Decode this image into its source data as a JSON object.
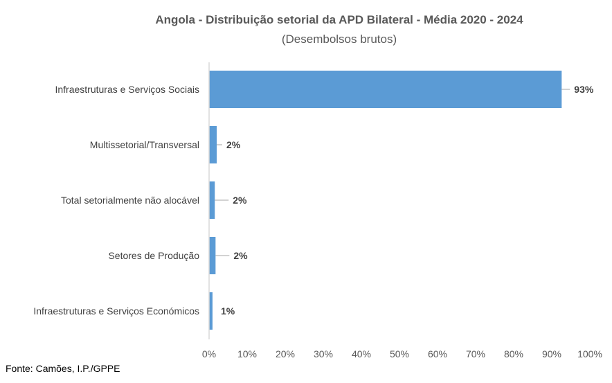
{
  "chart_data": {
    "type": "bar",
    "orientation": "horizontal",
    "title": "Angola - Distribuição setorial da APD Bilateral - Média 2020  - 2024",
    "subtitle": "(Desembolsos brutos)",
    "categories": [
      "Infraestruturas e Serviços Sociais",
      "Multissetorial/Transversal",
      "Total setorialmente não alocável",
      "Setores de Produção",
      "Infraestruturas e Serviços Económicos"
    ],
    "values": [
      92.6,
      2.0,
      1.5,
      1.7,
      0.9
    ],
    "data_labels": [
      "93%",
      "2%",
      "2%",
      "2%",
      "1%"
    ],
    "xlim": [
      0,
      100
    ],
    "x_ticks": [
      "0%",
      "10%",
      "20%",
      "30%",
      "40%",
      "50%",
      "60%",
      "70%",
      "80%",
      "90%",
      "100%"
    ],
    "xlabel": "",
    "ylabel": "",
    "grid": false,
    "bar_color": "#5B9BD5"
  },
  "source": "Fonte: Camões, I.P./GPPE"
}
